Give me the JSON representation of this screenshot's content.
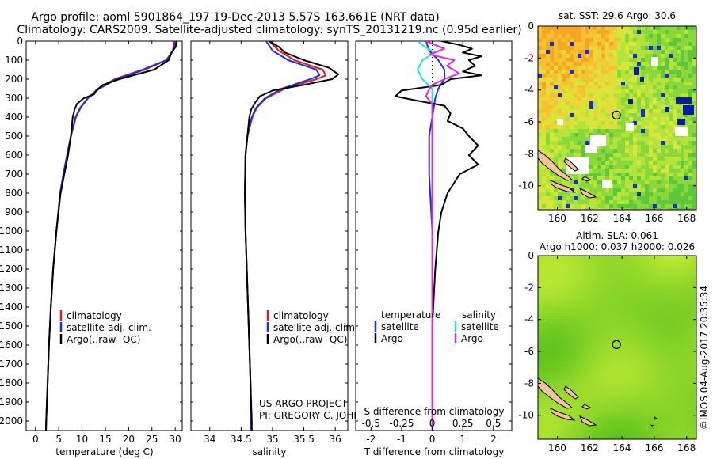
{
  "header": {
    "line1": "Argo profile: aoml 5901864_197 19-Dec-2013 5.57S 163.661E (NRT data)",
    "line2": "Climatology: CARS2009. Satellite-adjusted climatology: synTS_20131219.nc (0.95d earlier)"
  },
  "credit": {
    "line1": "US ARGO PROJECT",
    "line2": "PI: GREGORY C. JOHNSON"
  },
  "timestamp": "©IMOS 04-Aug-2017 20:35:34",
  "colors": {
    "climatology": "#e41a1c",
    "satellite": "#1f2fe0",
    "argo": "#000000",
    "salinity_satellite": "#22e0f0",
    "salinity_argo": "#ee22dd"
  },
  "chart_data": [
    {
      "type": "line",
      "name": "temperature",
      "xlabel": "temperature (deg C)",
      "ylabel": "",
      "xlim": [
        -2,
        31.5
      ],
      "ylim": [
        2050,
        0
      ],
      "x_ticks": [
        0,
        5,
        10,
        15,
        20,
        25,
        30
      ],
      "x_tick_labels": [
        "0",
        "5",
        "10",
        "15",
        "20",
        "25",
        "30"
      ],
      "y_ticks": [
        0,
        100,
        200,
        300,
        400,
        500,
        600,
        700,
        800,
        900,
        1000,
        1100,
        1200,
        1300,
        1400,
        1500,
        1600,
        1700,
        1800,
        1900,
        2000
      ],
      "legend": [
        "climatology",
        "satellite-adj. clim.",
        "Argo(..raw -QC)"
      ],
      "legend_position": "middle-left",
      "series": [
        {
          "name": "climatology",
          "color": "#e41a1c",
          "depth": [
            0,
            50,
            100,
            150,
            200,
            250,
            300,
            350,
            400,
            500,
            600,
            700,
            800,
            1000,
            1200,
            1400,
            1600,
            1800,
            2000,
            2050
          ],
          "values": [
            30.0,
            29.6,
            28.0,
            23.0,
            17.0,
            13.5,
            11.2,
            9.6,
            8.6,
            7.6,
            6.8,
            6.0,
            5.3,
            4.5,
            3.8,
            3.3,
            2.9,
            2.6,
            2.3,
            2.25
          ]
        },
        {
          "name": "satellite-adj. clim.",
          "color": "#1f2fe0",
          "depth": [
            0,
            50,
            100,
            150,
            200,
            250,
            300,
            350,
            400,
            500,
            600,
            700,
            800,
            1000,
            1200,
            1400,
            1600,
            1800,
            2000,
            2050
          ],
          "values": [
            29.8,
            29.5,
            28.2,
            23.4,
            17.4,
            13.7,
            11.3,
            9.7,
            8.7,
            7.6,
            6.8,
            6.0,
            5.3,
            4.5,
            3.8,
            3.3,
            2.9,
            2.6,
            2.3,
            2.25
          ]
        },
        {
          "name": "Argo(..raw -QC)",
          "color": "#000000",
          "depth": [
            0,
            30,
            60,
            100,
            150,
            200,
            230,
            260,
            280,
            300,
            330,
            360,
            400,
            500,
            600,
            700,
            800,
            1000,
            1200,
            1400,
            1600,
            1800,
            2000,
            2050
          ],
          "values": [
            30.3,
            30.1,
            29.2,
            28.6,
            25.5,
            18.0,
            14.5,
            13.0,
            12.6,
            10.4,
            8.9,
            8.4,
            8.0,
            7.6,
            7.0,
            6.2,
            5.4,
            4.5,
            3.8,
            3.3,
            2.9,
            2.6,
            2.3,
            2.25
          ]
        }
      ]
    },
    {
      "type": "line",
      "name": "salinity",
      "xlabel": "salinity",
      "xlim": [
        33.7,
        36.2
      ],
      "ylim": [
        2050,
        0
      ],
      "x_ticks": [
        34,
        34.5,
        35,
        35.5,
        36
      ],
      "x_tick_labels": [
        "34",
        "34.5",
        "35",
        "35.5",
        "36"
      ],
      "legend": [
        "climatology",
        "satellite-adj. clim.",
        "Argo(..raw -QC)"
      ],
      "legend_position": "bottom-right",
      "series": [
        {
          "name": "climatology",
          "color": "#e41a1c",
          "depth": [
            0,
            50,
            100,
            150,
            180,
            200,
            250,
            300,
            350,
            400,
            500,
            600,
            800,
            1000,
            1200,
            1400,
            1600,
            1800,
            2000,
            2050
          ],
          "values": [
            34.95,
            35.1,
            35.35,
            35.8,
            35.85,
            35.7,
            35.2,
            34.9,
            34.75,
            34.68,
            34.6,
            34.57,
            34.56,
            34.57,
            34.59,
            34.61,
            34.63,
            34.65,
            34.66,
            34.66
          ]
        },
        {
          "name": "satellite-adj. clim.",
          "color": "#1f2fe0",
          "depth": [
            0,
            50,
            100,
            150,
            180,
            200,
            250,
            300,
            350,
            400,
            500,
            600,
            800,
            1000,
            1200,
            1400,
            1600,
            1800,
            2000,
            2050
          ],
          "values": [
            34.9,
            35.0,
            35.25,
            35.7,
            35.75,
            35.6,
            35.15,
            34.88,
            34.74,
            34.67,
            34.6,
            34.57,
            34.56,
            34.57,
            34.59,
            34.61,
            34.63,
            34.65,
            34.66,
            34.66
          ]
        },
        {
          "name": "Argo(..raw -QC)",
          "color": "#000000",
          "depth": [
            0,
            30,
            60,
            100,
            140,
            175,
            200,
            230,
            260,
            290,
            320,
            360,
            400,
            500,
            600,
            800,
            1000,
            1200,
            1400,
            1600,
            1800,
            2000,
            2050
          ],
          "values": [
            34.95,
            35.1,
            35.2,
            35.5,
            35.9,
            36.05,
            35.95,
            35.5,
            35.0,
            34.8,
            34.73,
            34.66,
            34.63,
            34.6,
            34.57,
            34.56,
            34.57,
            34.59,
            34.61,
            34.63,
            34.65,
            34.67,
            34.67
          ]
        }
      ]
    },
    {
      "type": "line",
      "name": "difference",
      "xlabel": "T difference from climatology",
      "xlabel_top": "S difference from climatology",
      "xlim": [
        -2.5,
        2.6
      ],
      "ylim": [
        2050,
        0
      ],
      "x_ticks": [
        -2,
        -1,
        0,
        1,
        2
      ],
      "x_tick_labels": [
        "-2",
        "-1",
        "0",
        "1",
        "2"
      ],
      "s_ticks": [
        -0.5,
        -0.25,
        0,
        0.25,
        0.5
      ],
      "s_tick_labels": [
        "-0.5",
        "-0.25",
        "0",
        "0.25",
        "0.5"
      ],
      "legend_headers": [
        "temperature",
        "salinity"
      ],
      "legend": [
        "satellite",
        "Argo",
        "satellite",
        "Argo"
      ],
      "legend_position": "bottom-left",
      "series": [
        {
          "name": "T satellite",
          "color": "#1f2fe0",
          "depth": [
            0,
            50,
            100,
            150,
            200,
            250,
            300,
            400,
            500,
            700,
            1000,
            1500,
            2000,
            2050
          ],
          "values": [
            -0.2,
            -0.1,
            0.2,
            0.4,
            0.4,
            0.2,
            0.1,
            0.0,
            -0.1,
            -0.1,
            0.0,
            0.0,
            0.0,
            0.0
          ]
        },
        {
          "name": "T Argo",
          "color": "#000000",
          "depth": [
            0,
            20,
            40,
            60,
            80,
            100,
            130,
            160,
            180,
            200,
            230,
            260,
            290,
            310,
            340,
            380,
            420,
            460,
            500,
            550,
            600,
            650,
            700,
            800,
            900,
            1000,
            1200,
            1500,
            1800,
            2000,
            2050
          ],
          "values": [
            0.3,
            0.9,
            1.3,
            1.0,
            1.6,
            1.2,
            1.4,
            1.0,
            1.6,
            0.6,
            0.3,
            -1.0,
            -1.2,
            -0.6,
            0.4,
            0.6,
            0.5,
            1.0,
            1.2,
            1.5,
            1.2,
            1.5,
            0.9,
            0.5,
            0.3,
            0.2,
            0.1,
            0.0,
            0.0,
            0.0,
            0.0
          ]
        },
        {
          "name": "S satellite",
          "color": "#22e0f0",
          "depth": [
            0,
            30,
            60,
            100,
            150,
            200,
            250,
            300,
            400,
            500,
            700,
            1000,
            1500,
            2000,
            2050
          ],
          "values": [
            -0.12,
            -0.06,
            0.02,
            -0.08,
            -0.12,
            -0.08,
            0.0,
            0.0,
            0.0,
            0.0,
            0.0,
            0.0,
            0.0,
            0.0,
            0.0
          ]
        },
        {
          "name": "S Argo",
          "color": "#ee22dd",
          "depth": [
            0,
            40,
            70,
            100,
            130,
            170,
            200,
            230,
            260,
            290,
            330,
            400,
            500,
            700,
            1000,
            1500,
            2000,
            2050
          ],
          "values": [
            -0.05,
            0.1,
            -0.02,
            0.18,
            0.12,
            0.22,
            0.1,
            0.0,
            -0.03,
            -0.05,
            0.0,
            0.0,
            0.0,
            0.0,
            0.0,
            0.0,
            0.0,
            0.0
          ]
        }
      ]
    },
    {
      "type": "heatmap",
      "name": "sst_map",
      "title": "sat. SST: 29.6  Argo: 30.6",
      "xlim": [
        158.8,
        168.6
      ],
      "ylim": [
        -11.5,
        0
      ],
      "x_ticks": [
        160,
        162,
        164,
        166,
        168
      ],
      "x_tick_labels": [
        "160",
        "162",
        "164",
        "166",
        "168"
      ],
      "y_ticks": [
        0,
        -2,
        -4,
        -6,
        -8,
        -10
      ],
      "y_tick_labels": [
        "0",
        "-2",
        "-4",
        "-6",
        "-8",
        "-10"
      ],
      "marker": {
        "lon": 163.66,
        "lat": -5.57
      }
    },
    {
      "type": "heatmap",
      "name": "sla_map",
      "title_line1": "Altim. SLA: 0.061",
      "title_line2": "Argo h1000: 0.037 h2000: 0.026",
      "xlim": [
        158.8,
        168.6
      ],
      "ylim": [
        -11.5,
        0
      ],
      "x_ticks": [
        160,
        162,
        164,
        166,
        168
      ],
      "x_tick_labels": [
        "160",
        "162",
        "164",
        "166",
        "168"
      ],
      "y_ticks": [
        0,
        -2,
        -4,
        -6,
        -8,
        -10
      ],
      "y_tick_labels": [
        "0",
        "-2",
        "-4",
        "-6",
        "-8",
        "-10"
      ],
      "marker": {
        "lon": 163.66,
        "lat": -5.57
      }
    }
  ]
}
